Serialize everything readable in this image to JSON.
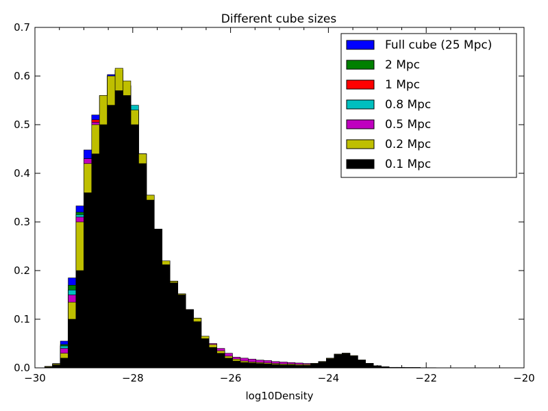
{
  "chart_data": {
    "type": "bar",
    "title": "Different cube sizes",
    "xlabel": "log10Density",
    "ylabel": "",
    "xlim": [
      -30,
      -20
    ],
    "ylim": [
      0,
      0.7
    ],
    "xticks": [
      -30,
      -28,
      -26,
      -24,
      -22,
      -20
    ],
    "xtick_labels": [
      "−30",
      "−28",
      "−26",
      "−24",
      "−22",
      "−20"
    ],
    "yticks": [
      0.0,
      0.1,
      0.2,
      0.3,
      0.4,
      0.5,
      0.6,
      0.7
    ],
    "ytick_labels": [
      "0.0",
      "0.1",
      "0.2",
      "0.3",
      "0.4",
      "0.5",
      "0.6",
      "0.7"
    ],
    "grid": false,
    "legend_position": "top-right",
    "series": [
      {
        "name": "Full cube (25 Mpc)",
        "color": "#0000ff",
        "x": [
          -29.8,
          -29.64,
          -29.48,
          -29.32,
          -29.16,
          -29.0,
          -28.84,
          -28.68,
          -28.52,
          -28.36,
          -28.2,
          -28.04,
          -27.88,
          -27.72,
          -27.56,
          -27.4,
          -27.24,
          -27.08,
          -26.92,
          -26.76,
          -26.6,
          -26.44,
          -26.28,
          -26.12,
          -25.96,
          -25.8,
          -25.64,
          -25.48,
          -25.32,
          -25.16,
          -25.0,
          -24.84,
          -24.68,
          -24.52,
          -24.36,
          -24.2,
          -24.04,
          -23.88,
          -23.72,
          -23.56,
          -23.4,
          -23.24,
          -23.08,
          -22.92,
          -22.76,
          -22.6,
          -22.44,
          -22.28,
          -22.12,
          -21.96
        ],
        "y": [
          0.003,
          0.009,
          0.055,
          0.185,
          0.333,
          0.448,
          0.52,
          0.558,
          0.603,
          0.606,
          0.58,
          0.528,
          0.44,
          0.355,
          0.285,
          0.22,
          0.178,
          0.152,
          0.12,
          0.102,
          0.065,
          0.048,
          0.035,
          0.024,
          0.018,
          0.014,
          0.012,
          0.011,
          0.01,
          0.009,
          0.008,
          0.008,
          0.007,
          0.007,
          0.009,
          0.013,
          0.02,
          0.028,
          0.03,
          0.025,
          0.016,
          0.009,
          0.004,
          0.002,
          0.001,
          0.001,
          0.0005,
          0.0005,
          0.0003,
          0.0003
        ]
      },
      {
        "name": "2 Mpc",
        "color": "#008000",
        "x": [
          -29.8,
          -29.64,
          -29.48,
          -29.32,
          -29.16,
          -29.0,
          -28.84,
          -28.68,
          -28.52,
          -28.36,
          -28.2,
          -28.04,
          -27.88,
          -27.72,
          -27.56,
          -27.4,
          -27.24,
          -27.08,
          -26.92,
          -26.76,
          -26.6,
          -26.44,
          -26.28,
          -26.12,
          -25.96,
          -25.8,
          -25.64,
          -25.48,
          -25.32,
          -25.16,
          -25.0,
          -24.84,
          -24.68,
          -24.52,
          -24.36,
          -24.2,
          -24.04,
          -23.88,
          -23.72,
          -23.56,
          -23.4,
          -23.24,
          -23.08,
          -22.92,
          -22.76,
          -22.6,
          -22.44,
          -22.28,
          -22.12,
          -21.96
        ],
        "y": [
          0.003,
          0.008,
          0.048,
          0.17,
          0.32,
          0.43,
          0.51,
          0.56,
          0.6,
          0.612,
          0.58,
          0.53,
          0.44,
          0.355,
          0.285,
          0.22,
          0.178,
          0.152,
          0.12,
          0.102,
          0.065,
          0.048,
          0.035,
          0.024,
          0.018,
          0.014,
          0.012,
          0.011,
          0.01,
          0.009,
          0.008,
          0.008,
          0.007,
          0.007,
          0.009,
          0.013,
          0.02,
          0.028,
          0.03,
          0.025,
          0.016,
          0.009,
          0.004,
          0.002,
          0.001,
          0.001,
          0.0005,
          0.0005,
          0.0003,
          0.0003
        ]
      },
      {
        "name": "1 Mpc",
        "color": "#ff0000",
        "x": [
          -29.8,
          -29.64,
          -29.48,
          -29.32,
          -29.16,
          -29.0,
          -28.84,
          -28.68,
          -28.52,
          -28.36,
          -28.2,
          -28.04,
          -27.88,
          -27.72,
          -27.56,
          -27.4,
          -27.24,
          -27.08,
          -26.92,
          -26.76,
          -26.6,
          -26.44,
          -26.28,
          -26.12,
          -25.96,
          -25.8,
          -25.64,
          -25.48,
          -25.32,
          -25.16,
          -25.0,
          -24.84,
          -24.68,
          -24.52,
          -24.36,
          -24.2,
          -24.04,
          -23.88,
          -23.72,
          -23.56,
          -23.4,
          -23.24,
          -23.08,
          -22.92,
          -22.76,
          -22.6,
          -22.44,
          -22.28,
          -22.12,
          -21.96
        ],
        "y": [
          0.003,
          0.008,
          0.045,
          0.16,
          0.315,
          0.43,
          0.51,
          0.56,
          0.6,
          0.612,
          0.58,
          0.53,
          0.44,
          0.355,
          0.285,
          0.22,
          0.178,
          0.152,
          0.12,
          0.102,
          0.065,
          0.048,
          0.035,
          0.024,
          0.018,
          0.014,
          0.012,
          0.011,
          0.01,
          0.009,
          0.008,
          0.008,
          0.007,
          0.007,
          0.009,
          0.013,
          0.02,
          0.028,
          0.03,
          0.025,
          0.016,
          0.009,
          0.004,
          0.002,
          0.001,
          0.001,
          0.0005,
          0.0005,
          0.0003,
          0.0003
        ]
      },
      {
        "name": "0.8 Mpc",
        "color": "#00bfbf",
        "x": [
          -29.8,
          -29.64,
          -29.48,
          -29.32,
          -29.16,
          -29.0,
          -28.84,
          -28.68,
          -28.52,
          -28.36,
          -28.2,
          -28.04,
          -27.88,
          -27.72,
          -27.56,
          -27.4,
          -27.24,
          -27.08,
          -26.92,
          -26.76,
          -26.6,
          -26.44,
          -26.28,
          -26.12,
          -25.96,
          -25.8,
          -25.64,
          -25.48,
          -25.32,
          -25.16,
          -25.0,
          -24.84,
          -24.68,
          -24.52,
          -24.36,
          -24.2,
          -24.04,
          -23.88,
          -23.72,
          -23.56,
          -23.4,
          -23.24,
          -23.08,
          -22.92,
          -22.76,
          -22.6,
          -22.44,
          -22.28,
          -22.12,
          -21.96
        ],
        "y": [
          0.003,
          0.008,
          0.045,
          0.16,
          0.315,
          0.43,
          0.505,
          0.56,
          0.6,
          0.612,
          0.58,
          0.54,
          0.44,
          0.355,
          0.285,
          0.22,
          0.178,
          0.152,
          0.12,
          0.102,
          0.065,
          0.048,
          0.035,
          0.024,
          0.018,
          0.014,
          0.012,
          0.011,
          0.01,
          0.009,
          0.008,
          0.008,
          0.007,
          0.007,
          0.009,
          0.013,
          0.02,
          0.028,
          0.03,
          0.025,
          0.016,
          0.009,
          0.004,
          0.002,
          0.001,
          0.001,
          0.0005,
          0.0005,
          0.0003,
          0.0003
        ]
      },
      {
        "name": "0.5 Mpc",
        "color": "#bf00bf",
        "x": [
          -29.8,
          -29.64,
          -29.48,
          -29.32,
          -29.16,
          -29.0,
          -28.84,
          -28.68,
          -28.52,
          -28.36,
          -28.2,
          -28.04,
          -27.88,
          -27.72,
          -27.56,
          -27.4,
          -27.24,
          -27.08,
          -26.92,
          -26.76,
          -26.6,
          -26.44,
          -26.28,
          -26.12,
          -25.96,
          -25.8,
          -25.64,
          -25.48,
          -25.32,
          -25.16,
          -25.0,
          -24.84,
          -24.68,
          -24.52,
          -24.36,
          -24.2,
          -24.04,
          -23.88,
          -23.72,
          -23.56,
          -23.4,
          -23.24,
          -23.08,
          -22.92,
          -22.76,
          -22.6,
          -22.44,
          -22.28,
          -22.12,
          -21.96
        ],
        "y": [
          0.003,
          0.008,
          0.04,
          0.15,
          0.31,
          0.43,
          0.505,
          0.56,
          0.6,
          0.612,
          0.58,
          0.528,
          0.44,
          0.355,
          0.285,
          0.22,
          0.178,
          0.152,
          0.12,
          0.102,
          0.065,
          0.05,
          0.04,
          0.03,
          0.022,
          0.02,
          0.018,
          0.016,
          0.015,
          0.013,
          0.012,
          0.011,
          0.01,
          0.009,
          0.009,
          0.013,
          0.02,
          0.028,
          0.03,
          0.025,
          0.016,
          0.009,
          0.004,
          0.002,
          0.001,
          0.001,
          0.0005,
          0.0005,
          0.0003,
          0.0003
        ]
      },
      {
        "name": "0.2 Mpc",
        "color": "#bfbf00",
        "x": [
          -29.8,
          -29.64,
          -29.48,
          -29.32,
          -29.16,
          -29.0,
          -28.84,
          -28.68,
          -28.52,
          -28.36,
          -28.2,
          -28.04,
          -27.88,
          -27.72,
          -27.56,
          -27.4,
          -27.24,
          -27.08,
          -26.92,
          -26.76,
          -26.6,
          -26.44,
          -26.28,
          -26.12,
          -25.96,
          -25.8,
          -25.64,
          -25.48,
          -25.32,
          -25.16,
          -25.0,
          -24.84,
          -24.68,
          -24.52,
          -24.36,
          -24.2,
          -24.04,
          -23.88,
          -23.72,
          -23.56,
          -23.4,
          -23.24,
          -23.08,
          -22.92,
          -22.76,
          -22.6,
          -22.44,
          -22.28,
          -22.12,
          -21.96
        ],
        "y": [
          0.003,
          0.008,
          0.03,
          0.135,
          0.3,
          0.42,
          0.5,
          0.56,
          0.6,
          0.616,
          0.59,
          0.53,
          0.44,
          0.355,
          0.285,
          0.22,
          0.178,
          0.152,
          0.12,
          0.102,
          0.065,
          0.048,
          0.035,
          0.024,
          0.018,
          0.014,
          0.012,
          0.011,
          0.01,
          0.009,
          0.008,
          0.008,
          0.007,
          0.007,
          0.009,
          0.013,
          0.02,
          0.028,
          0.03,
          0.025,
          0.016,
          0.009,
          0.004,
          0.002,
          0.001,
          0.001,
          0.0005,
          0.0005,
          0.0003,
          0.0003
        ]
      },
      {
        "name": "0.1 Mpc",
        "color": "#000000",
        "x": [
          -29.8,
          -29.64,
          -29.48,
          -29.32,
          -29.16,
          -29.0,
          -28.84,
          -28.68,
          -28.52,
          -28.36,
          -28.2,
          -28.04,
          -27.88,
          -27.72,
          -27.56,
          -27.4,
          -27.24,
          -27.08,
          -26.92,
          -26.76,
          -26.6,
          -26.44,
          -26.28,
          -26.12,
          -25.96,
          -25.8,
          -25.64,
          -25.48,
          -25.32,
          -25.16,
          -25.0,
          -24.84,
          -24.68,
          -24.52,
          -24.36,
          -24.2,
          -24.04,
          -23.88,
          -23.72,
          -23.56,
          -23.4,
          -23.24,
          -23.08,
          -22.92,
          -22.76,
          -22.6,
          -22.44,
          -22.28,
          -22.12,
          -21.96
        ],
        "y": [
          0.002,
          0.006,
          0.02,
          0.1,
          0.2,
          0.36,
          0.44,
          0.5,
          0.54,
          0.57,
          0.56,
          0.5,
          0.42,
          0.345,
          0.285,
          0.212,
          0.175,
          0.15,
          0.12,
          0.095,
          0.06,
          0.042,
          0.03,
          0.02,
          0.014,
          0.011,
          0.01,
          0.009,
          0.008,
          0.007,
          0.006,
          0.006,
          0.005,
          0.005,
          0.008,
          0.012,
          0.019,
          0.027,
          0.029,
          0.024,
          0.015,
          0.009,
          0.004,
          0.002,
          0.001,
          0.001,
          0.0005,
          0.0005,
          0.0003,
          0.0003
        ]
      }
    ]
  }
}
